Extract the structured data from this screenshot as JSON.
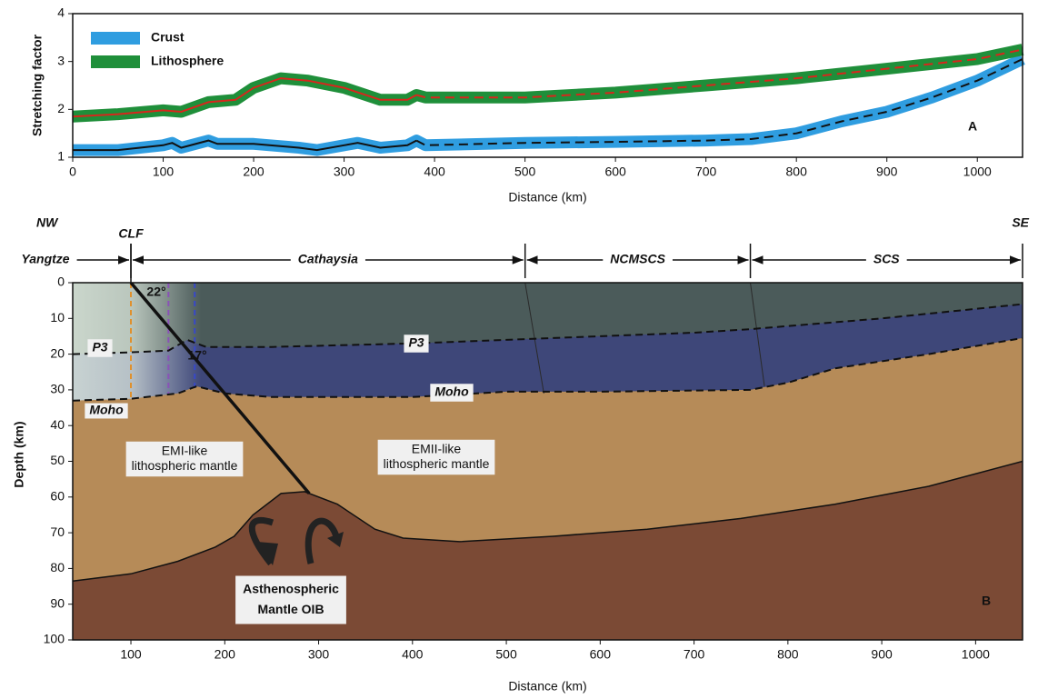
{
  "chart_data": [
    {
      "type": "line",
      "ylabel": "Stretching factor",
      "xlabel": "Distance (km)",
      "panel_label": "A",
      "xlim": [
        0,
        1050
      ],
      "ylim": [
        1,
        4
      ],
      "xticks": [
        0,
        100,
        200,
        300,
        400,
        500,
        600,
        700,
        800,
        900,
        1000
      ],
      "yticks": [
        1,
        2,
        3,
        4
      ],
      "legend": "top-left",
      "series": [
        {
          "name": "Crust",
          "color": "#2f9de0",
          "centerline_color": "#111111",
          "dash_from": 380,
          "x": [
            0,
            50,
            100,
            110,
            120,
            150,
            160,
            200,
            250,
            270,
            300,
            315,
            340,
            370,
            380,
            390,
            500,
            600,
            700,
            750,
            800,
            850,
            900,
            950,
            1000,
            1050
          ],
          "values": [
            1.15,
            1.15,
            1.25,
            1.3,
            1.2,
            1.35,
            1.28,
            1.28,
            1.2,
            1.15,
            1.25,
            1.3,
            1.2,
            1.25,
            1.35,
            1.25,
            1.3,
            1.32,
            1.35,
            1.38,
            1.5,
            1.75,
            1.95,
            2.25,
            2.6,
            3.05
          ]
        },
        {
          "name": "Lithosphere",
          "color": "#1f8f3a",
          "centerline_color": "#d8261c",
          "dash_from": 380,
          "x": [
            0,
            50,
            100,
            120,
            150,
            180,
            200,
            230,
            260,
            300,
            340,
            370,
            380,
            390,
            500,
            600,
            700,
            800,
            900,
            1000,
            1050
          ],
          "values": [
            1.85,
            1.9,
            1.98,
            1.95,
            2.15,
            2.2,
            2.45,
            2.65,
            2.6,
            2.45,
            2.2,
            2.2,
            2.3,
            2.25,
            2.25,
            2.35,
            2.5,
            2.65,
            2.85,
            3.05,
            3.25
          ]
        }
      ]
    },
    {
      "type": "section",
      "ylabel": "Depth (km)",
      "xlabel": "Distance (km)",
      "panel_label": "B",
      "left_label": "NW",
      "right_label": "SE",
      "fault_label": "CLF",
      "xlim": [
        38,
        1050
      ],
      "ylim": [
        0,
        100
      ],
      "xticks": [
        100,
        200,
        300,
        400,
        500,
        600,
        700,
        800,
        900,
        1000
      ],
      "yticks": [
        0,
        10,
        20,
        30,
        40,
        50,
        60,
        70,
        80,
        90,
        100
      ],
      "background_color": "#4b5b5a",
      "domains": [
        {
          "label": "Yangtze",
          "from": 38,
          "to": 100
        },
        {
          "label": "Cathaysia",
          "from": 100,
          "to": 520
        },
        {
          "label": "NCMSCS",
          "from": 520,
          "to": 760
        },
        {
          "label": "SCS",
          "from": 760,
          "to": 1050
        }
      ],
      "boundaries": [
        {
          "color": "#3e4779",
          "dashed": true,
          "x": [
            38,
            100,
            140,
            160,
            180,
            250,
            400,
            500,
            600,
            700,
            760,
            900,
            1050
          ],
          "depth": [
            20,
            19.5,
            19,
            16,
            18,
            18,
            17,
            16,
            15,
            14,
            13,
            10,
            6
          ]
        },
        {
          "color": "#b68b58",
          "dashed": true,
          "x": [
            38,
            100,
            150,
            170,
            200,
            250,
            400,
            500,
            600,
            760,
            800,
            850,
            950,
            1050
          ],
          "depth": [
            33,
            32.5,
            31,
            29,
            31,
            32,
            32,
            30.5,
            30.5,
            30,
            28,
            24,
            20,
            15.5
          ]
        },
        {
          "color": "#7b4a35",
          "dashed": false,
          "x": [
            38,
            100,
            150,
            190,
            210,
            230,
            260,
            285,
            320,
            360,
            390,
            450,
            550,
            650,
            750,
            850,
            950,
            1050
          ],
          "depth": [
            83.5,
            81.5,
            78,
            74,
            71,
            65,
            59,
            58.5,
            62,
            69,
            71.5,
            72.5,
            71,
            69,
            66,
            62,
            57,
            50
          ]
        }
      ],
      "fault": {
        "x": [
          100,
          290
        ],
        "depth": [
          0,
          59
        ]
      },
      "sutures": [
        {
          "x": [
            520,
            540
          ],
          "depth": [
            0,
            31
          ]
        },
        {
          "x": [
            760,
            775
          ],
          "depth": [
            0,
            29
          ]
        }
      ],
      "markers": [
        {
          "x": 100,
          "depth": [
            0,
            33
          ],
          "color": "#e0902c"
        },
        {
          "x": 140,
          "depth": [
            0,
            31
          ],
          "color": "#8a52b8"
        },
        {
          "x": 168,
          "depth": [
            0,
            30
          ],
          "color": "#3848c8"
        }
      ],
      "annotations": {
        "p3_left": "P3",
        "p3_mid": "P3",
        "moho_left": "Moho",
        "moho_mid": "Moho",
        "angle_fault": "22°",
        "angle_p3": "17°",
        "emi": [
          "EMI-like",
          "lithospheric mantle"
        ],
        "emii": [
          "EMII-like",
          "lithospheric mantle"
        ],
        "asth": [
          "Asthenospheric",
          "Mantle OIB"
        ]
      }
    }
  ]
}
